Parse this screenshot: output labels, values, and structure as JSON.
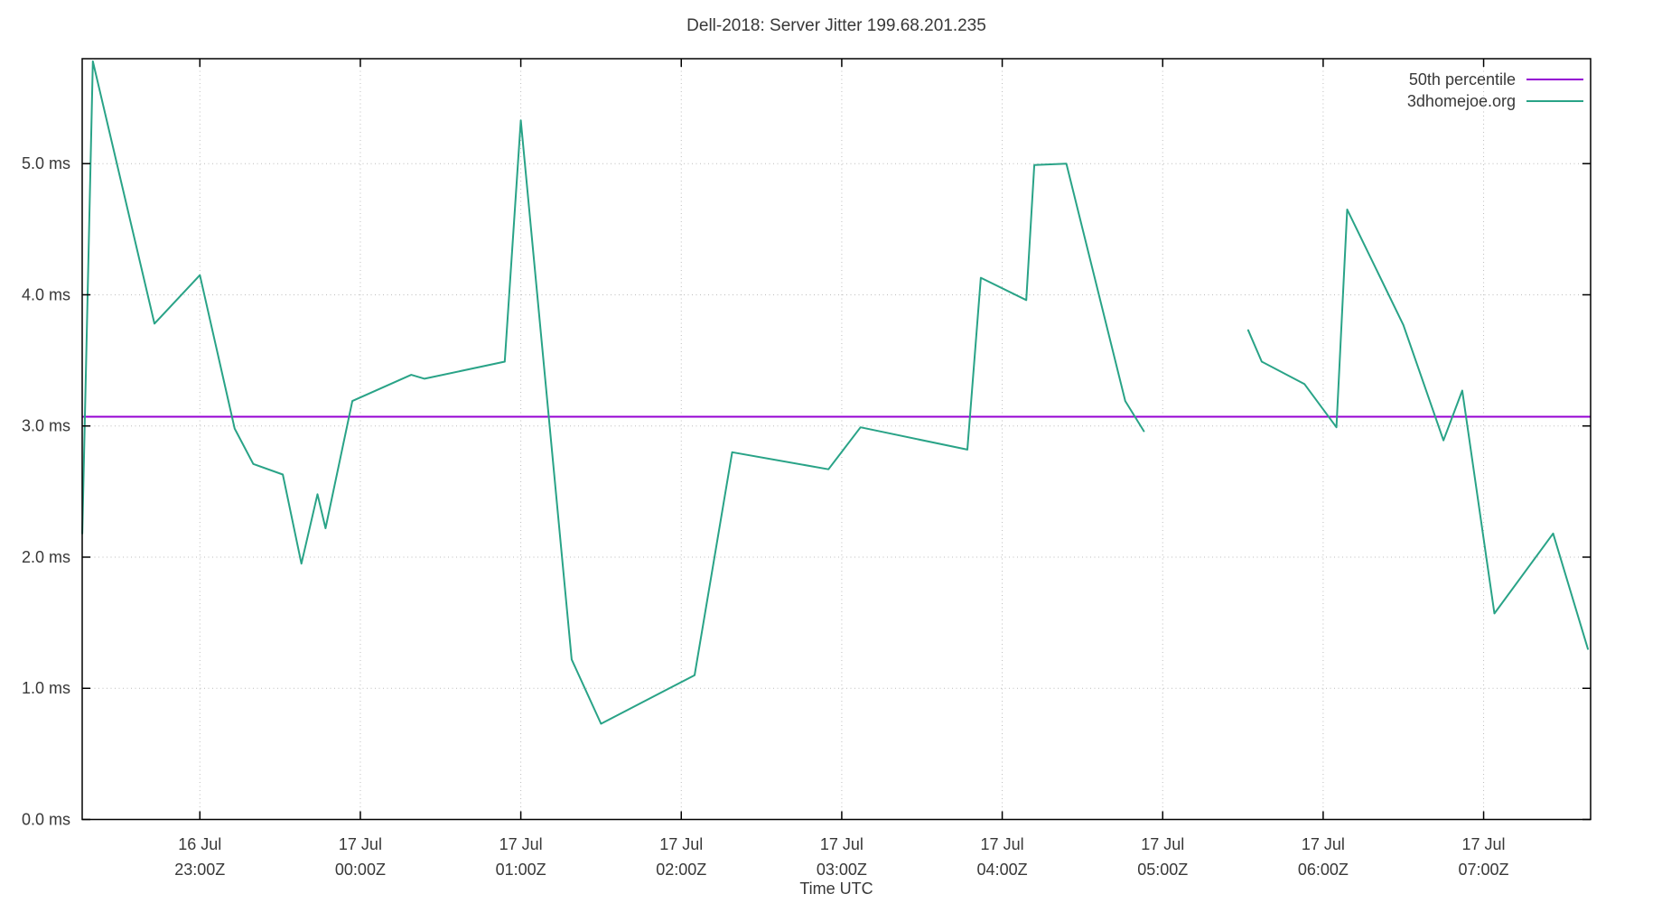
{
  "title": "Dell-2018: Server Jitter 199.68.201.235",
  "xlabel": "Time UTC",
  "colors": {
    "percentile_line": "#9400d3",
    "series_line": "#29a387",
    "grid": "#bcbcbc",
    "border": "#000000",
    "text": "#383838"
  },
  "chart_data": {
    "type": "line",
    "title": "Dell-2018: Server Jitter 199.68.201.235",
    "xlabel": "Time UTC",
    "ylabel": "",
    "grid": true,
    "legend_position": "top-right-inside",
    "x_unit": "hours relative to 17 Jul 00:00 UTC",
    "x_range_hours": [
      -1.7333,
      7.6667
    ],
    "y_range_ms": [
      0,
      5.8
    ],
    "x_ticks": [
      {
        "hour": -1,
        "date": "16 Jul",
        "time": "23:00Z"
      },
      {
        "hour": 0,
        "date": "17 Jul",
        "time": "00:00Z"
      },
      {
        "hour": 1,
        "date": "17 Jul",
        "time": "01:00Z"
      },
      {
        "hour": 2,
        "date": "17 Jul",
        "time": "02:00Z"
      },
      {
        "hour": 3,
        "date": "17 Jul",
        "time": "03:00Z"
      },
      {
        "hour": 4,
        "date": "17 Jul",
        "time": "04:00Z"
      },
      {
        "hour": 5,
        "date": "17 Jul",
        "time": "05:00Z"
      },
      {
        "hour": 6,
        "date": "17 Jul",
        "time": "06:00Z"
      },
      {
        "hour": 7,
        "date": "17 Jul",
        "time": "07:00Z"
      }
    ],
    "y_ticks": [
      {
        "value": 0,
        "label": "0.0 ms"
      },
      {
        "value": 1,
        "label": "1.0 ms"
      },
      {
        "value": 2,
        "label": "2.0 ms"
      },
      {
        "value": 3,
        "label": "3.0 ms"
      },
      {
        "value": 4,
        "label": "4.0 ms"
      },
      {
        "value": 5,
        "label": "5.0 ms"
      }
    ],
    "series": [
      {
        "name": "50th percentile",
        "color": "#9400d3",
        "type": "hline",
        "value_ms": 3.07
      },
      {
        "name": "3dhomejoe.org",
        "color": "#29a387",
        "type": "line",
        "segments": [
          [
            [
              -1.733,
              2.18
            ],
            [
              -1.667,
              5.78
            ],
            [
              -1.283,
              3.78
            ],
            [
              -1.0,
              4.15
            ],
            [
              -0.783,
              2.98
            ],
            [
              -0.667,
              2.71
            ],
            [
              -0.483,
              2.63
            ],
            [
              -0.367,
              1.95
            ],
            [
              -0.267,
              2.48
            ],
            [
              -0.217,
              2.22
            ],
            [
              -0.05,
              3.19
            ],
            [
              0.317,
              3.39
            ],
            [
              0.4,
              3.36
            ],
            [
              0.9,
              3.49
            ],
            [
              1.0,
              5.33
            ],
            [
              1.317,
              1.22
            ],
            [
              1.5,
              0.73
            ],
            [
              2.083,
              1.1
            ],
            [
              2.317,
              2.8
            ],
            [
              2.917,
              2.67
            ],
            [
              3.117,
              2.99
            ],
            [
              3.783,
              2.82
            ],
            [
              3.867,
              4.13
            ],
            [
              4.15,
              3.96
            ],
            [
              4.2,
              4.99
            ],
            [
              4.4,
              5.0
            ],
            [
              4.767,
              3.19
            ],
            [
              4.883,
              2.96
            ]
          ],
          [
            [
              5.533,
              3.73
            ],
            [
              5.617,
              3.49
            ],
            [
              5.883,
              3.32
            ],
            [
              6.083,
              2.99
            ],
            [
              6.15,
              4.65
            ],
            [
              6.5,
              3.77
            ],
            [
              6.75,
              2.89
            ],
            [
              6.867,
              3.27
            ],
            [
              7.067,
              1.57
            ],
            [
              7.433,
              2.18
            ],
            [
              7.65,
              1.3
            ]
          ]
        ]
      }
    ]
  }
}
